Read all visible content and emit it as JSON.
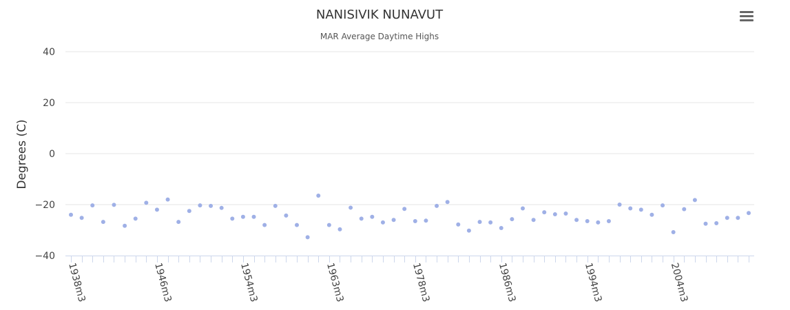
{
  "chart_data": {
    "type": "scatter",
    "title": "NANISIVIK NUNAVUT",
    "subtitle": "MAR Average Daytime Highs",
    "ylabel": "Degrees (C)",
    "xlabel": "",
    "ylim": [
      -40,
      40
    ],
    "yticks": [
      40,
      20,
      0,
      -20,
      -40
    ],
    "xtick_labels": [
      "1938m3",
      "1946m3",
      "1954m3",
      "1963m3",
      "1978m3",
      "1986m3",
      "1994m3",
      "2004m3"
    ],
    "xtick_label_index": [
      0,
      8,
      16,
      24,
      32,
      40,
      48,
      56
    ],
    "grid": true,
    "legend": "none",
    "marker_color": "#9fb0e6",
    "values": [
      -24,
      -25.2,
      -20.3,
      -26.8,
      -20.1,
      -28.3,
      -25.5,
      -19.3,
      -22,
      -18,
      -26.8,
      -22.5,
      -20.3,
      -20.5,
      -21.3,
      -25.5,
      -24.8,
      -24.8,
      -28,
      -20.5,
      -24.3,
      -28,
      -32.8,
      -16.5,
      -28,
      -29.7,
      -21.2,
      -25.5,
      -24.8,
      -27,
      -26,
      -21.7,
      -26.5,
      -26.3,
      -20.5,
      -19,
      -27.8,
      -30.2,
      -26.8,
      -27,
      -29.2,
      -25.7,
      -21.5,
      -26,
      -23,
      -23.8,
      -23.5,
      -26,
      -26.5,
      -27,
      -26.5,
      -20,
      -21.5,
      -22,
      -24,
      -20.3,
      -30.8,
      -21.8,
      -18.2,
      -27.5,
      -27.3,
      -25.2,
      -25.2,
      -23.3
    ]
  },
  "menu": {
    "icon": "hamburger-menu-icon"
  }
}
